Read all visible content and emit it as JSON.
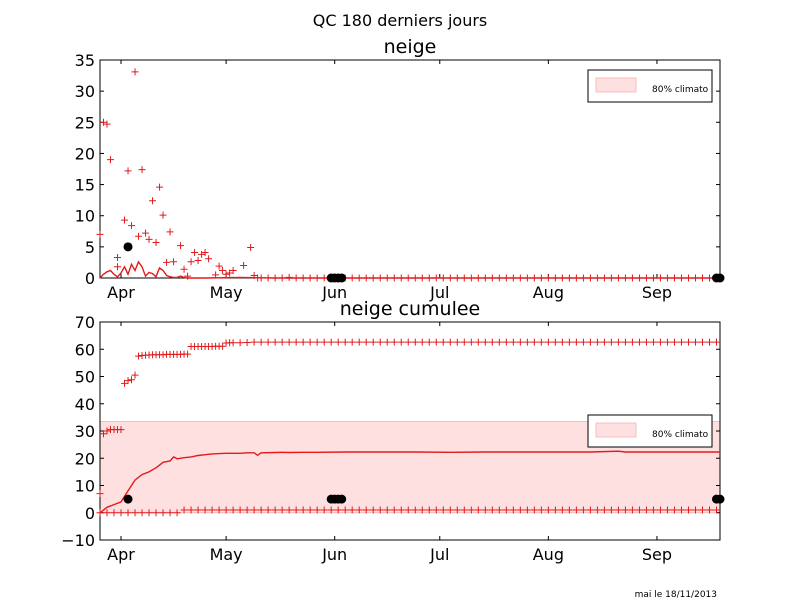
{
  "figure": {
    "suptitle": "QC 180 derniers jours",
    "footer": "mai le 18/11/2013"
  },
  "colors": {
    "red": "#e31a1c",
    "band": "#ffe0e0",
    "band_edge": "#f3b3b3",
    "black": "#000000"
  },
  "chart_data": [
    {
      "type": "scatter",
      "title": "neige",
      "x_ticks": [
        {
          "label": "Apr",
          "day": 6
        },
        {
          "label": "May",
          "day": 36
        },
        {
          "label": "Jun",
          "day": 67
        },
        {
          "label": "Jul",
          "day": 97
        },
        {
          "label": "Aug",
          "day": 128
        },
        {
          "label": "Sep",
          "day": 159
        }
      ],
      "xlim": [
        0,
        177
      ],
      "ylim": [
        0,
        35
      ],
      "y_ticks": [
        0,
        5,
        10,
        15,
        20,
        25,
        30,
        35
      ],
      "legend": {
        "label": "80% climato",
        "position": "upper right"
      },
      "series": [
        {
          "style": "plus",
          "points": [
            [
              0,
              7
            ],
            [
              1,
              25
            ],
            [
              2,
              24.7
            ],
            [
              3,
              19
            ],
            [
              5,
              1.8
            ],
            [
              5,
              3.3
            ],
            [
              7,
              9.3
            ],
            [
              8,
              17.2
            ],
            [
              9,
              8.4
            ],
            [
              10,
              33.1
            ],
            [
              11,
              6.7
            ],
            [
              12,
              17.4
            ],
            [
              13,
              7.2
            ],
            [
              14,
              6.2
            ],
            [
              15,
              12.4
            ],
            [
              16,
              5.7
            ],
            [
              17,
              14.6
            ],
            [
              18,
              10.1
            ],
            [
              19,
              2.5
            ],
            [
              20,
              7.4
            ],
            [
              21,
              2.6
            ],
            [
              23,
              5.2
            ],
            [
              24,
              1.4
            ],
            [
              25,
              0.3
            ],
            [
              26,
              2.6
            ],
            [
              27,
              4.1
            ],
            [
              28,
              2.8
            ],
            [
              29,
              3.8
            ],
            [
              30,
              4.1
            ],
            [
              31,
              3.1
            ],
            [
              33,
              0.5
            ],
            [
              34,
              1.9
            ],
            [
              35,
              1.2
            ],
            [
              36,
              0.6
            ],
            [
              37,
              0.8
            ],
            [
              38,
              1.2
            ],
            [
              41,
              2
            ],
            [
              43,
              4.9
            ],
            [
              44,
              0.4
            ],
            [
              45,
              0
            ],
            [
              46,
              0
            ],
            [
              48,
              0
            ],
            [
              50,
              0
            ],
            [
              52,
              0
            ],
            [
              54,
              0.1
            ],
            [
              56,
              0
            ],
            [
              58,
              0
            ],
            [
              60,
              0
            ],
            [
              62,
              0
            ],
            [
              64,
              0
            ],
            [
              66,
              0
            ],
            [
              68,
              0
            ],
            [
              70,
              0
            ],
            [
              72,
              0
            ],
            [
              74,
              0
            ],
            [
              76,
              0
            ],
            [
              78,
              0
            ],
            [
              80,
              0
            ],
            [
              82,
              0
            ],
            [
              84,
              0
            ],
            [
              86,
              0
            ],
            [
              88,
              0
            ],
            [
              90,
              0
            ],
            [
              92,
              0
            ],
            [
              94,
              0
            ],
            [
              96,
              0
            ],
            [
              98,
              0
            ],
            [
              100,
              0
            ],
            [
              102,
              0
            ],
            [
              104,
              0
            ],
            [
              106,
              0
            ],
            [
              108,
              0
            ],
            [
              110,
              0
            ],
            [
              112,
              0
            ],
            [
              114,
              0
            ],
            [
              116,
              0
            ],
            [
              118,
              0
            ],
            [
              120,
              0
            ],
            [
              122,
              0
            ],
            [
              124,
              0
            ],
            [
              126,
              0
            ],
            [
              128,
              0
            ],
            [
              130,
              0
            ],
            [
              132,
              0
            ],
            [
              134,
              0
            ],
            [
              136,
              0
            ],
            [
              138,
              0
            ],
            [
              140,
              0
            ],
            [
              142,
              0
            ],
            [
              144,
              0
            ],
            [
              146,
              0
            ],
            [
              148,
              0
            ],
            [
              150,
              0
            ],
            [
              152,
              0
            ],
            [
              154,
              0
            ],
            [
              156,
              0
            ],
            [
              158,
              0
            ],
            [
              160,
              0
            ],
            [
              162,
              0
            ],
            [
              164,
              0
            ],
            [
              166,
              0
            ],
            [
              168,
              0
            ],
            [
              170,
              0
            ],
            [
              172,
              0
            ],
            [
              174,
              0
            ],
            [
              176,
              0
            ]
          ]
        },
        {
          "style": "line",
          "points": [
            [
              0,
              0
            ],
            [
              1,
              0.6
            ],
            [
              2,
              1
            ],
            [
              3,
              1.2
            ],
            [
              4,
              0.6
            ],
            [
              5,
              0.2
            ],
            [
              6,
              0.8
            ],
            [
              7,
              1.8
            ],
            [
              8,
              0.6
            ],
            [
              9,
              2.2
            ],
            [
              10,
              1.2
            ],
            [
              11,
              2.6
            ],
            [
              12,
              1.8
            ],
            [
              13,
              0.3
            ],
            [
              14,
              0.9
            ],
            [
              15,
              0.7
            ],
            [
              16,
              0.2
            ],
            [
              17,
              1.6
            ],
            [
              18,
              1.2
            ],
            [
              19,
              0.4
            ],
            [
              20,
              0.2
            ],
            [
              21,
              0.1
            ],
            [
              22,
              0.1
            ],
            [
              23,
              0.3
            ],
            [
              24,
              0.1
            ],
            [
              25,
              0
            ],
            [
              30,
              0
            ],
            [
              40,
              0.1
            ],
            [
              50,
              0
            ],
            [
              60,
              0
            ],
            [
              80,
              0
            ],
            [
              100,
              0
            ],
            [
              120,
              0
            ],
            [
              140,
              0
            ],
            [
              160,
              0
            ],
            [
              177,
              0
            ]
          ]
        },
        {
          "style": "dot",
          "points": [
            [
              8,
              5
            ],
            [
              66,
              0
            ],
            [
              67,
              0
            ],
            [
              68,
              0
            ],
            [
              69,
              0
            ],
            [
              176,
              0
            ],
            [
              177,
              0
            ]
          ]
        }
      ]
    },
    {
      "type": "scatter",
      "title": "neige cumulee",
      "x_ticks": [
        {
          "label": "Apr",
          "day": 6
        },
        {
          "label": "May",
          "day": 36
        },
        {
          "label": "Jun",
          "day": 67
        },
        {
          "label": "Jul",
          "day": 97
        },
        {
          "label": "Aug",
          "day": 128
        },
        {
          "label": "Sep",
          "day": 159
        }
      ],
      "xlim": [
        0,
        177
      ],
      "ylim": [
        -10,
        70
      ],
      "y_ticks": [
        -10,
        0,
        10,
        20,
        30,
        40,
        50,
        60,
        70
      ],
      "legend": {
        "label": "80% climato",
        "position": "center right"
      },
      "band": [
        0,
        33.5
      ],
      "upper_plus": [
        [
          0,
          7
        ],
        [
          1,
          29
        ],
        [
          2,
          30
        ],
        [
          3,
          30.5
        ],
        [
          4,
          30.5
        ],
        [
          5,
          30.5
        ],
        [
          6,
          30.5
        ],
        [
          7,
          47.5
        ],
        [
          8,
          48.5
        ],
        [
          9,
          48.8
        ],
        [
          10,
          50.5
        ],
        [
          11,
          57.5
        ],
        [
          12,
          57.7
        ],
        [
          13,
          57.8
        ],
        [
          14,
          57.9
        ],
        [
          15,
          58
        ],
        [
          16,
          58
        ],
        [
          17,
          58
        ],
        [
          18,
          58
        ],
        [
          19,
          58.1
        ],
        [
          20,
          58.1
        ],
        [
          21,
          58.1
        ],
        [
          22,
          58.1
        ],
        [
          23,
          58.1
        ],
        [
          24,
          58.2
        ],
        [
          25,
          58.2
        ],
        [
          26,
          61
        ],
        [
          27,
          61
        ],
        [
          28,
          61
        ],
        [
          29,
          61
        ],
        [
          30,
          61
        ],
        [
          31,
          61
        ],
        [
          32,
          61
        ],
        [
          33,
          61.1
        ],
        [
          34,
          61.1
        ],
        [
          35,
          61.1
        ],
        [
          36,
          62.3
        ],
        [
          37,
          62.4
        ],
        [
          38,
          62.4
        ],
        [
          40,
          62.4
        ],
        [
          42,
          62.5
        ],
        [
          44,
          62.6
        ],
        [
          46,
          62.6
        ],
        [
          48,
          62.6
        ],
        [
          50,
          62.6
        ],
        [
          52,
          62.6
        ],
        [
          54,
          62.6
        ],
        [
          56,
          62.6
        ],
        [
          58,
          62.6
        ],
        [
          60,
          62.6
        ],
        [
          62,
          62.6
        ],
        [
          64,
          62.6
        ],
        [
          66,
          62.6
        ],
        [
          68,
          62.6
        ],
        [
          70,
          62.6
        ],
        [
          72,
          62.6
        ],
        [
          74,
          62.6
        ],
        [
          76,
          62.6
        ],
        [
          78,
          62.6
        ],
        [
          80,
          62.6
        ],
        [
          82,
          62.6
        ],
        [
          84,
          62.6
        ],
        [
          86,
          62.6
        ],
        [
          88,
          62.6
        ],
        [
          90,
          62.6
        ],
        [
          92,
          62.6
        ],
        [
          94,
          62.6
        ],
        [
          96,
          62.6
        ],
        [
          98,
          62.6
        ],
        [
          100,
          62.6
        ],
        [
          102,
          62.6
        ],
        [
          104,
          62.6
        ],
        [
          106,
          62.6
        ],
        [
          108,
          62.6
        ],
        [
          110,
          62.6
        ],
        [
          112,
          62.6
        ],
        [
          114,
          62.6
        ],
        [
          116,
          62.6
        ],
        [
          118,
          62.6
        ],
        [
          120,
          62.6
        ],
        [
          122,
          62.6
        ],
        [
          124,
          62.6
        ],
        [
          126,
          62.6
        ],
        [
          128,
          62.6
        ],
        [
          130,
          62.6
        ],
        [
          132,
          62.6
        ],
        [
          134,
          62.6
        ],
        [
          136,
          62.6
        ],
        [
          138,
          62.6
        ],
        [
          140,
          62.6
        ],
        [
          142,
          62.6
        ],
        [
          144,
          62.6
        ],
        [
          146,
          62.6
        ],
        [
          148,
          62.6
        ],
        [
          150,
          62.6
        ],
        [
          152,
          62.6
        ],
        [
          154,
          62.6
        ],
        [
          156,
          62.6
        ],
        [
          158,
          62.6
        ],
        [
          160,
          62.6
        ],
        [
          162,
          62.6
        ],
        [
          164,
          62.6
        ],
        [
          166,
          62.6
        ],
        [
          168,
          62.6
        ],
        [
          170,
          62.6
        ],
        [
          172,
          62.6
        ],
        [
          174,
          62.6
        ],
        [
          176,
          62.6
        ]
      ],
      "lower_plus_step": 2,
      "lower_plus_levels": [
        [
          0,
          0
        ],
        [
          24,
          1
        ],
        [
          177,
          1
        ]
      ],
      "mean_line": [
        [
          0,
          0
        ],
        [
          2,
          2
        ],
        [
          4,
          3
        ],
        [
          6,
          4
        ],
        [
          8,
          8
        ],
        [
          10,
          12
        ],
        [
          12,
          14
        ],
        [
          14,
          15
        ],
        [
          16,
          16.5
        ],
        [
          18,
          18.5
        ],
        [
          20,
          19
        ],
        [
          21,
          20.5
        ],
        [
          22,
          19.8
        ],
        [
          24,
          20.2
        ],
        [
          26,
          20.5
        ],
        [
          28,
          21
        ],
        [
          30,
          21.3
        ],
        [
          32,
          21.6
        ],
        [
          34,
          21.7
        ],
        [
          36,
          21.8
        ],
        [
          40,
          21.8
        ],
        [
          42,
          22
        ],
        [
          44,
          22
        ],
        [
          45,
          21.1
        ],
        [
          46,
          22
        ],
        [
          50,
          22.1
        ],
        [
          52,
          22.2
        ],
        [
          54,
          22.1
        ],
        [
          58,
          22.2
        ],
        [
          62,
          22.2
        ],
        [
          70,
          22.3
        ],
        [
          80,
          22.3
        ],
        [
          90,
          22.3
        ],
        [
          100,
          22.2
        ],
        [
          110,
          22.3
        ],
        [
          120,
          22.3
        ],
        [
          130,
          22.3
        ],
        [
          140,
          22.3
        ],
        [
          148,
          22.6
        ],
        [
          150,
          22.3
        ],
        [
          160,
          22.3
        ],
        [
          170,
          22.3
        ],
        [
          177,
          22.3
        ]
      ],
      "dots": [
        [
          8,
          5
        ],
        [
          66,
          5
        ],
        [
          67,
          5
        ],
        [
          68,
          5
        ],
        [
          69,
          5
        ],
        [
          176,
          5
        ],
        [
          177,
          5
        ]
      ]
    }
  ]
}
